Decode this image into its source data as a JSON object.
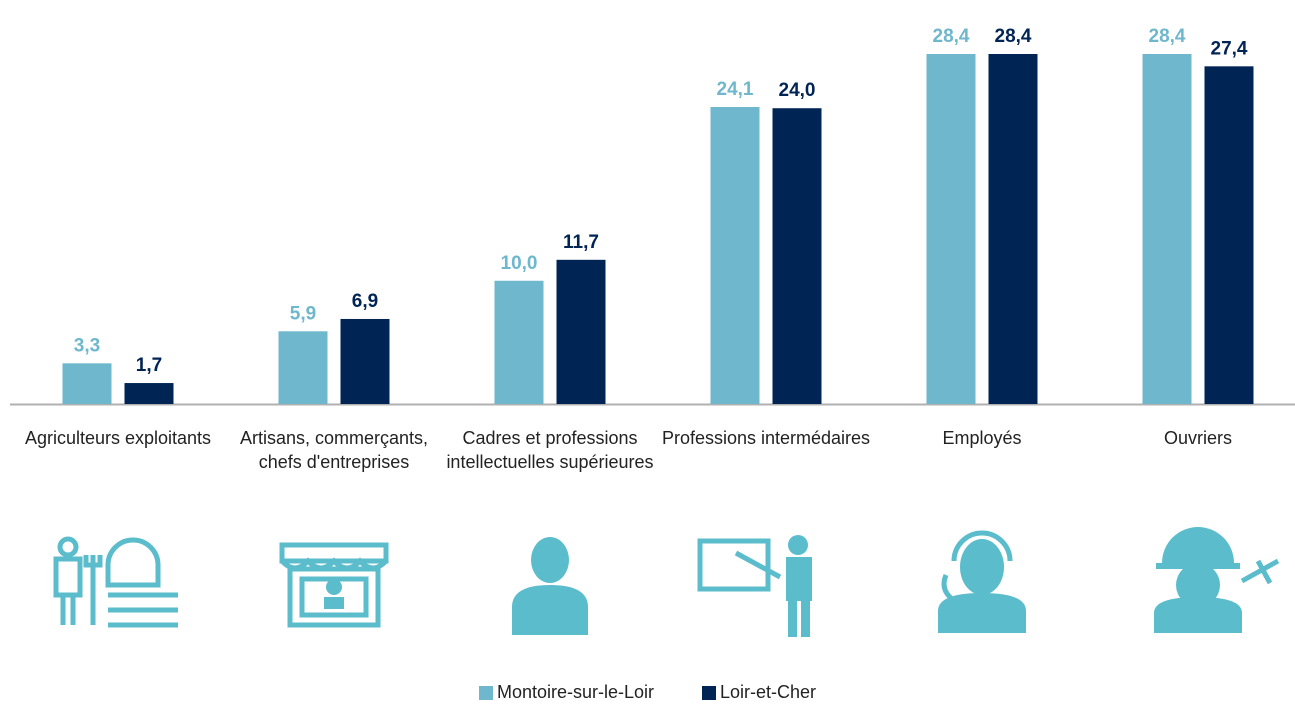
{
  "chart_data": {
    "type": "bar",
    "categories": [
      "Agriculteurs exploitants",
      "Artisans, commerçants, chefs d'entreprises",
      "Cadres et professions intellectuelles supérieures",
      "Professions intermédaires",
      "Employés",
      "Ouvriers"
    ],
    "series": [
      {
        "name": "Montoire-sur-le-Loir",
        "color": "#6fb7cc",
        "values": [
          3.3,
          5.9,
          10.0,
          24.1,
          28.4,
          28.4
        ],
        "value_labels": [
          "3,3",
          "5,9",
          "10,0",
          "24,1",
          "28,4",
          "28,4"
        ]
      },
      {
        "name": "Loir-et-Cher",
        "color": "#002454",
        "values": [
          1.7,
          6.9,
          11.7,
          24.0,
          28.4,
          27.4
        ],
        "value_labels": [
          "1,7",
          "6,9",
          "11,7",
          "24,0",
          "28,4",
          "27,4"
        ]
      }
    ]
  }
}
